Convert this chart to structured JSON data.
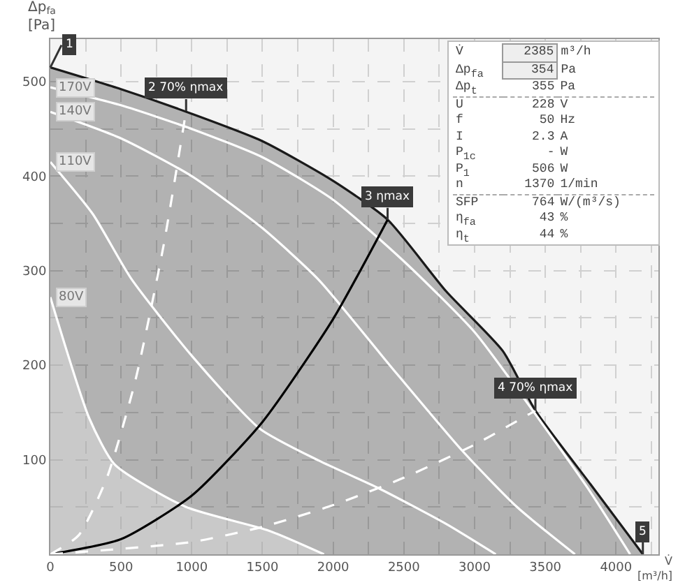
{
  "chart_data": [
    {
      "type": "line",
      "xlabel": "V̇ [m³/h]",
      "ylabel": "Δp$_{fa}$ [Pa]",
      "xlim": [
        0,
        4300
      ],
      "ylim": [
        0,
        545
      ],
      "xticks": [
        0,
        {
          "value": 250,
          "label": null
        },
        500,
        {
          "value": 750,
          "label": null
        },
        1000,
        {
          "value": 1250,
          "label": null
        },
        1500,
        {
          "value": 1750,
          "label": null
        },
        2000,
        {
          "value": 2250,
          "label": null
        },
        2500,
        {
          "value": 2750,
          "label": null
        },
        3000,
        {
          "value": 3250,
          "label": null
        },
        3500,
        {
          "value": 3750,
          "label": null
        },
        4000,
        {
          "value": 4250,
          "label": null
        }
      ],
      "yticks": [
        {
          "value": 0,
          "label": null
        },
        {
          "value": 50,
          "label": null
        },
        100,
        {
          "value": 150,
          "label": null
        },
        200,
        {
          "value": 250,
          "label": null
        },
        300,
        {
          "value": 350,
          "label": null
        },
        400,
        {
          "value": 450,
          "label": null
        },
        500
      ],
      "grid": true,
      "legend": false,
      "marker": "none",
      "series": [
        {
          "type": "area",
          "color": "#1a1a1a",
          "x": [
            0,
            500,
            1000,
            1500,
            2000,
            2385,
            2800,
            3200,
            3430,
            3820,
            4190
          ],
          "values": [
            515,
            492,
            466,
            437,
            395,
            354,
            278,
            215,
            152,
            74,
            0
          ]
        },
        {
          "type": "line",
          "name": "170V",
          "color": "#ffffff",
          "x": [
            0,
            500,
            1000,
            1500,
            2000,
            2500,
            3000,
            3450,
            3800,
            4100
          ],
          "values": [
            494,
            475,
            450,
            420,
            375,
            310,
            235,
            144,
            70,
            0
          ]
        },
        {
          "type": "line",
          "name": "140V",
          "color": "#ffffff",
          "x": [
            0,
            500,
            1000,
            1500,
            1900,
            2400,
            2910,
            3300,
            3710
          ],
          "values": [
            468,
            440,
            400,
            345,
            290,
            200,
            110,
            50,
            0
          ]
        },
        {
          "type": "line",
          "name": "110V",
          "color": "#ffffff",
          "x": [
            0,
            300,
            570,
            1000,
            1480,
            1900,
            2320,
            2800,
            3150
          ],
          "values": [
            415,
            360,
            292,
            210,
            133,
            99,
            70,
            32,
            0
          ]
        },
        {
          "type": "area",
          "name": "80V",
          "color": "#ffffff",
          "x": [
            0,
            275,
            455,
            960,
            1545,
            1935
          ],
          "values": [
            272,
            144,
            95,
            50,
            25,
            0
          ]
        },
        {
          "type": "line",
          "color": "#000000",
          "x": [
            0,
            500,
            1000,
            1500,
            2000,
            2385
          ],
          "values": [
            0,
            16,
            62,
            140,
            249,
            354
          ]
        },
        {
          "type": "line",
          "line_style": "dashed",
          "color": "#ffffff",
          "x": [
            0,
            200,
            400,
            600,
            800,
            960
          ],
          "values": [
            0,
            20,
            81,
            183,
            326,
            469
          ]
        },
        {
          "type": "line",
          "line_style": "dashed",
          "color": "#ffffff",
          "x": [
            0,
            1000,
            1500,
            2000,
            2500,
            3000,
            3430
          ],
          "values": [
            0,
            13,
            29,
            52,
            81,
            116,
            152
          ]
        }
      ],
      "annotations": [
        {
          "text": "1",
          "x": 0,
          "y": 515
        },
        {
          "text": "2 70% ηmax",
          "x": 960,
          "y": 469
        },
        {
          "text": "3 ηmax",
          "x": 2385,
          "y": 354
        },
        {
          "text": "4 70% ηmax",
          "x": 3430,
          "y": 152
        },
        {
          "text": "5",
          "x": 4190,
          "y": 0
        }
      ]
    },
    {
      "type": "other",
      "annotations": [
        "V̇",
        "2385",
        "m³/h",
        "Δp$_{fa}$",
        "354",
        "Pa",
        "Δp$_{t}$",
        "355",
        "Pa",
        "U",
        "228",
        "V",
        "f",
        "50",
        "Hz",
        "I",
        "2.3",
        "A",
        "P$_{1c}$",
        "-",
        "W",
        "P$_{1}$",
        "506",
        "W",
        "n",
        "1370",
        "1/min",
        "SFP",
        "764",
        "W/(m³/s)",
        "η$_{fa}$",
        "43",
        "%",
        "η$_{t}$",
        "44",
        "%"
      ]
    }
  ]
}
